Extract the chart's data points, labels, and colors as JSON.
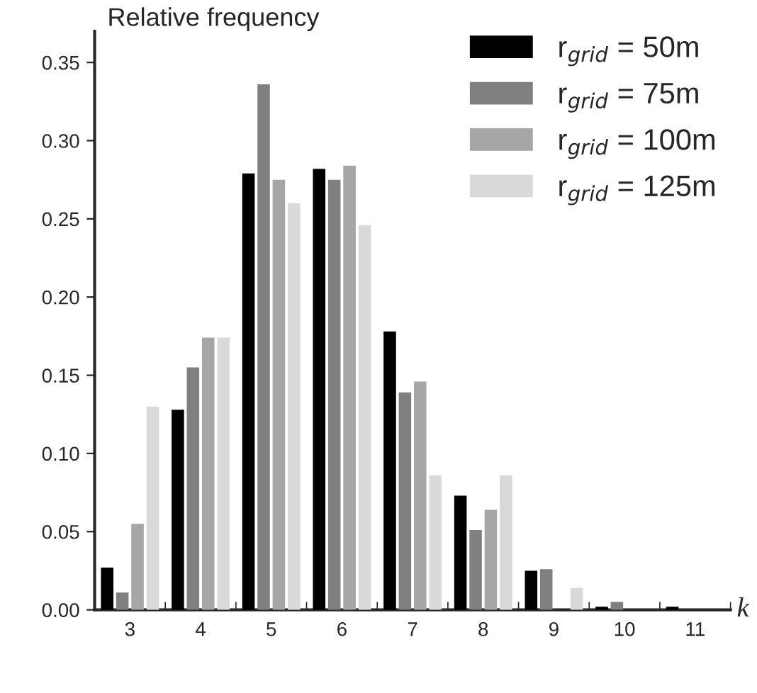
{
  "chart_data": {
    "type": "bar",
    "ylabel": "Relative frequency",
    "xlabel": "k",
    "categories": [
      "3",
      "4",
      "5",
      "6",
      "7",
      "8",
      "9",
      "10",
      "11"
    ],
    "series": [
      {
        "name": "r$_{grid}$ = 50m",
        "color": "#000000",
        "values": [
          0.027,
          0.128,
          0.279,
          0.282,
          0.178,
          0.073,
          0.025,
          0.002,
          0.002
        ]
      },
      {
        "name": "r$_{grid}$ = 75m",
        "color": "#808080",
        "values": [
          0.011,
          0.155,
          0.336,
          0.275,
          0.139,
          0.051,
          0.026,
          0.005,
          0
        ]
      },
      {
        "name": "r$_{grid}$ = 100m",
        "color": "#a6a6a6",
        "values": [
          0.055,
          0.174,
          0.275,
          0.284,
          0.146,
          0.064,
          0,
          0,
          0
        ]
      },
      {
        "name": "r$_{grid}$ = 125m",
        "color": "#d9d9d9",
        "values": [
          0.13,
          0.174,
          0.26,
          0.246,
          0.086,
          0.086,
          0.014,
          0,
          0
        ]
      }
    ],
    "ylim": [
      0,
      0.37
    ],
    "yticks": [
      {
        "value": 0,
        "label": "0.00"
      },
      {
        "value": 0.05,
        "label": "0.05"
      },
      {
        "value": 0.1,
        "label": "0.10"
      },
      {
        "value": 0.15,
        "label": "0.15"
      },
      {
        "value": 0.2,
        "label": "0.20"
      },
      {
        "value": 0.25,
        "label": "0.25"
      },
      {
        "value": 0.3,
        "label": "0.30"
      },
      {
        "value": 0.35,
        "label": "0.35"
      }
    ],
    "legend": "top right",
    "grid": false
  }
}
